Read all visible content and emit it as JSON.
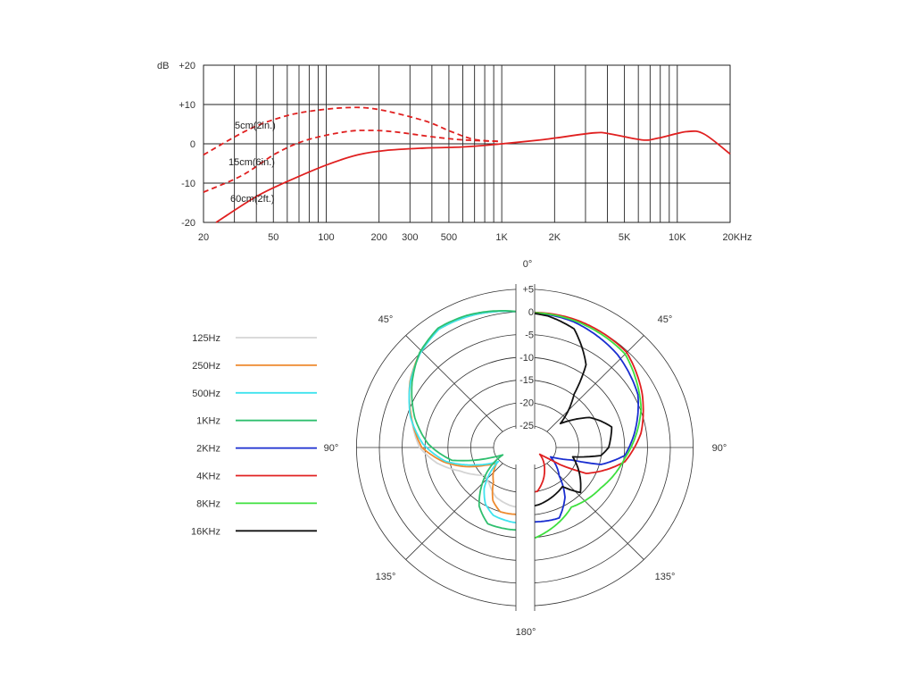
{
  "chart_data": [
    {
      "type": "line",
      "title": "",
      "xscale": "log",
      "xlim": [
        20,
        20000
      ],
      "ylim": [
        -20,
        20
      ],
      "grid": true,
      "ylabel": "dB",
      "yticks": [
        "+20",
        "+10",
        "0",
        "-10",
        "-20"
      ],
      "ytick_values": [
        20,
        10,
        0,
        -10,
        -20
      ],
      "xticks": [
        "20",
        "50",
        "100",
        "200",
        "300",
        "500",
        "1K",
        "2K",
        "5K",
        "10K",
        "20KHz"
      ],
      "xtick_values": [
        20,
        50,
        100,
        200,
        300,
        500,
        1000,
        2000,
        5000,
        10000,
        20000
      ],
      "color": "#e02020",
      "series": [
        {
          "name": "5cm(2in.)",
          "style": "dashed",
          "points": [
            [
              20,
              -2.8
            ],
            [
              36,
              3.6
            ],
            [
              55,
              6.7
            ],
            [
              78,
              8.2
            ],
            [
              130,
              9.2
            ],
            [
              195,
              8.8
            ],
            [
              360,
              5.9
            ],
            [
              516,
              3.1
            ],
            [
              702,
              1.1
            ],
            [
              1000,
              0.6
            ]
          ]
        },
        {
          "name": "15cm(6in.)",
          "style": "dashed",
          "points": [
            [
              20,
              -12.3
            ],
            [
              33,
              -8.1
            ],
            [
              52,
              -2.4
            ],
            [
              78,
              1.0
            ],
            [
              130,
              3.1
            ],
            [
              177,
              3.4
            ],
            [
              240,
              3.1
            ],
            [
              400,
              1.8
            ],
            [
              600,
              1.0
            ],
            [
              1000,
              0.6
            ]
          ]
        },
        {
          "name": "60cm(2ft.)",
          "style": "solid",
          "points": [
            [
              23.6,
              -20
            ],
            [
              40,
              -13.4
            ],
            [
              60,
              -9.6
            ],
            [
              100,
              -5.4
            ],
            [
              152,
              -2.8
            ],
            [
              217,
              -1.7
            ],
            [
              360,
              -1.1
            ],
            [
              600,
              -0.8
            ],
            [
              900,
              -0.2
            ],
            [
              1670,
              1.0
            ],
            [
              2040,
              1.5
            ],
            [
              3400,
              2.8
            ],
            [
              4160,
              2.5
            ],
            [
              6270,
              1.0
            ],
            [
              7710,
              1.4
            ],
            [
              11300,
              3.1
            ],
            [
              14200,
              2.5
            ],
            [
              20000,
              -2.6
            ]
          ]
        }
      ]
    },
    {
      "type": "line",
      "coordinate": "polar",
      "title": "",
      "rlim": [
        -25,
        5
      ],
      "rticks": [
        "+5",
        "0",
        "-5",
        "-10",
        "-15",
        "-20",
        "-25"
      ],
      "rtick_values": [
        5,
        0,
        -5,
        -10,
        -15,
        -20,
        -25
      ],
      "angle_labels": {
        "top": "0°",
        "upper_left": "45°",
        "upper_right": "45°",
        "left": "90°",
        "right": "90°",
        "lower_left": "135°",
        "lower_right": "135°",
        "bottom": "180°"
      },
      "legend_position": "left",
      "series": [
        {
          "name": "125Hz",
          "color": "#d4d4d4",
          "side": "left",
          "points": [
            [
              0,
              0
            ],
            [
              24,
              1.8
            ],
            [
              36,
              2.5
            ],
            [
              48,
              1.4
            ],
            [
              60,
              -0.5
            ],
            [
              75,
              -3.8
            ],
            [
              90,
              -6.5
            ],
            [
              100,
              -10
            ],
            [
              110,
              -14.5
            ],
            [
              118,
              -17
            ],
            [
              125,
              -19
            ],
            [
              135,
              -18.5
            ],
            [
              150,
              -17
            ],
            [
              165,
              -16.5
            ],
            [
              180,
              -16.3
            ]
          ]
        },
        {
          "name": "250Hz",
          "color": "#ee8a2e",
          "side": "left",
          "points": [
            [
              0,
              0
            ],
            [
              24,
              1.8
            ],
            [
              36,
              2.5
            ],
            [
              48,
              1.4
            ],
            [
              60,
              -0.5
            ],
            [
              75,
              -3.8
            ],
            [
              90,
              -7
            ],
            [
              100,
              -11.5
            ],
            [
              108,
              -16
            ],
            [
              114,
              -20
            ],
            [
              119,
              -22.6
            ],
            [
              130,
              -20.5
            ],
            [
              138,
              -19.3
            ],
            [
              149,
              -16
            ],
            [
              159,
              -14.5
            ],
            [
              172,
              -14.8
            ],
            [
              180,
              -14.8
            ]
          ]
        },
        {
          "name": "500Hz",
          "color": "#3fe3ee",
          "side": "left",
          "points": [
            [
              0,
              0
            ],
            [
              24,
              1.8
            ],
            [
              36,
              2.5
            ],
            [
              48,
              1.3
            ],
            [
              60,
              -0.6
            ],
            [
              75,
              -3.6
            ],
            [
              88,
              -7.2
            ],
            [
              100,
              -12
            ],
            [
              110,
              -18.5
            ],
            [
              118,
              -23
            ],
            [
              135,
              -17
            ],
            [
              145,
              -14.5
            ],
            [
              155,
              -13.2
            ],
            [
              170,
              -13
            ],
            [
              180,
              -13
            ]
          ]
        },
        {
          "name": "1KHz",
          "color": "#2fbf6e",
          "side": "left",
          "points": [
            [
              0,
              0
            ],
            [
              24,
              2.1
            ],
            [
              36,
              2.8
            ],
            [
              48,
              1.5
            ],
            [
              60,
              -1
            ],
            [
              75,
              -4.6
            ],
            [
              88,
              -8.4
            ],
            [
              100,
              -13.4
            ],
            [
              105,
              -19.2
            ],
            [
              108.6,
              -24.5
            ],
            [
              131,
              -17.1
            ],
            [
              142,
              -13.3
            ],
            [
              154,
              -11
            ],
            [
              173,
              -11.4
            ],
            [
              180,
              -11.5
            ]
          ]
        },
        {
          "name": "2KHz",
          "color": "#1a2ed0",
          "side": "right",
          "points": [
            [
              0,
              0
            ],
            [
              21,
              0
            ],
            [
              45,
              -0.8
            ],
            [
              65,
              -2.2
            ],
            [
              83.5,
              -5.5
            ],
            [
              94.6,
              -7.6
            ],
            [
              102.6,
              -12.5
            ],
            [
              105,
              -19
            ],
            [
              110,
              -23.6
            ],
            [
              129.6,
              -19.8
            ],
            [
              141,
              -15.6
            ],
            [
              154,
              -12.4
            ],
            [
              170.6,
              -13.1
            ],
            [
              180,
              -13.2
            ]
          ]
        },
        {
          "name": "4KHz",
          "color": "#e02020",
          "side": "right",
          "points": [
            [
              0,
              0
            ],
            [
              22,
              0.6
            ],
            [
              47,
              1.0
            ],
            [
              65,
              -1.2
            ],
            [
              83,
              -3.9
            ],
            [
              98,
              -7.4
            ],
            [
              112.9,
              -15
            ],
            [
              116,
              -21
            ],
            [
              114.5,
              -26
            ],
            [
              139,
              -23
            ],
            [
              164,
              -19.6
            ],
            [
              180,
              -19.8
            ]
          ]
        },
        {
          "name": "8KHz",
          "color": "#3ee03e",
          "side": "right",
          "points": [
            [
              0,
              0
            ],
            [
              22,
              0.3
            ],
            [
              47,
              0.5
            ],
            [
              71.7,
              -2.7
            ],
            [
              90,
              -6.3
            ],
            [
              96,
              -7.5
            ],
            [
              118,
              -10.7
            ],
            [
              142,
              -13
            ],
            [
              173,
              -9.7
            ],
            [
              180,
              -9.5
            ]
          ]
        },
        {
          "name": "16KHz",
          "color": "#111111",
          "side": "right",
          "points": [
            [
              0,
              0
            ],
            [
              10,
              -0.3
            ],
            [
              22.5,
              -1.4
            ],
            [
              36.5,
              -7
            ],
            [
              42.8,
              -13.7
            ],
            [
              56,
              -20.2
            ],
            [
              65,
              -14
            ],
            [
              70.6,
              -12
            ],
            [
              76.7,
              -10
            ],
            [
              90,
              -11.2
            ],
            [
              96,
              -12.8
            ],
            [
              101,
              -18.9
            ],
            [
              129,
              -13.9
            ],
            [
              136,
              -17.7
            ],
            [
              166,
              -16.7
            ],
            [
              180,
              -16.5
            ]
          ]
        }
      ]
    }
  ]
}
